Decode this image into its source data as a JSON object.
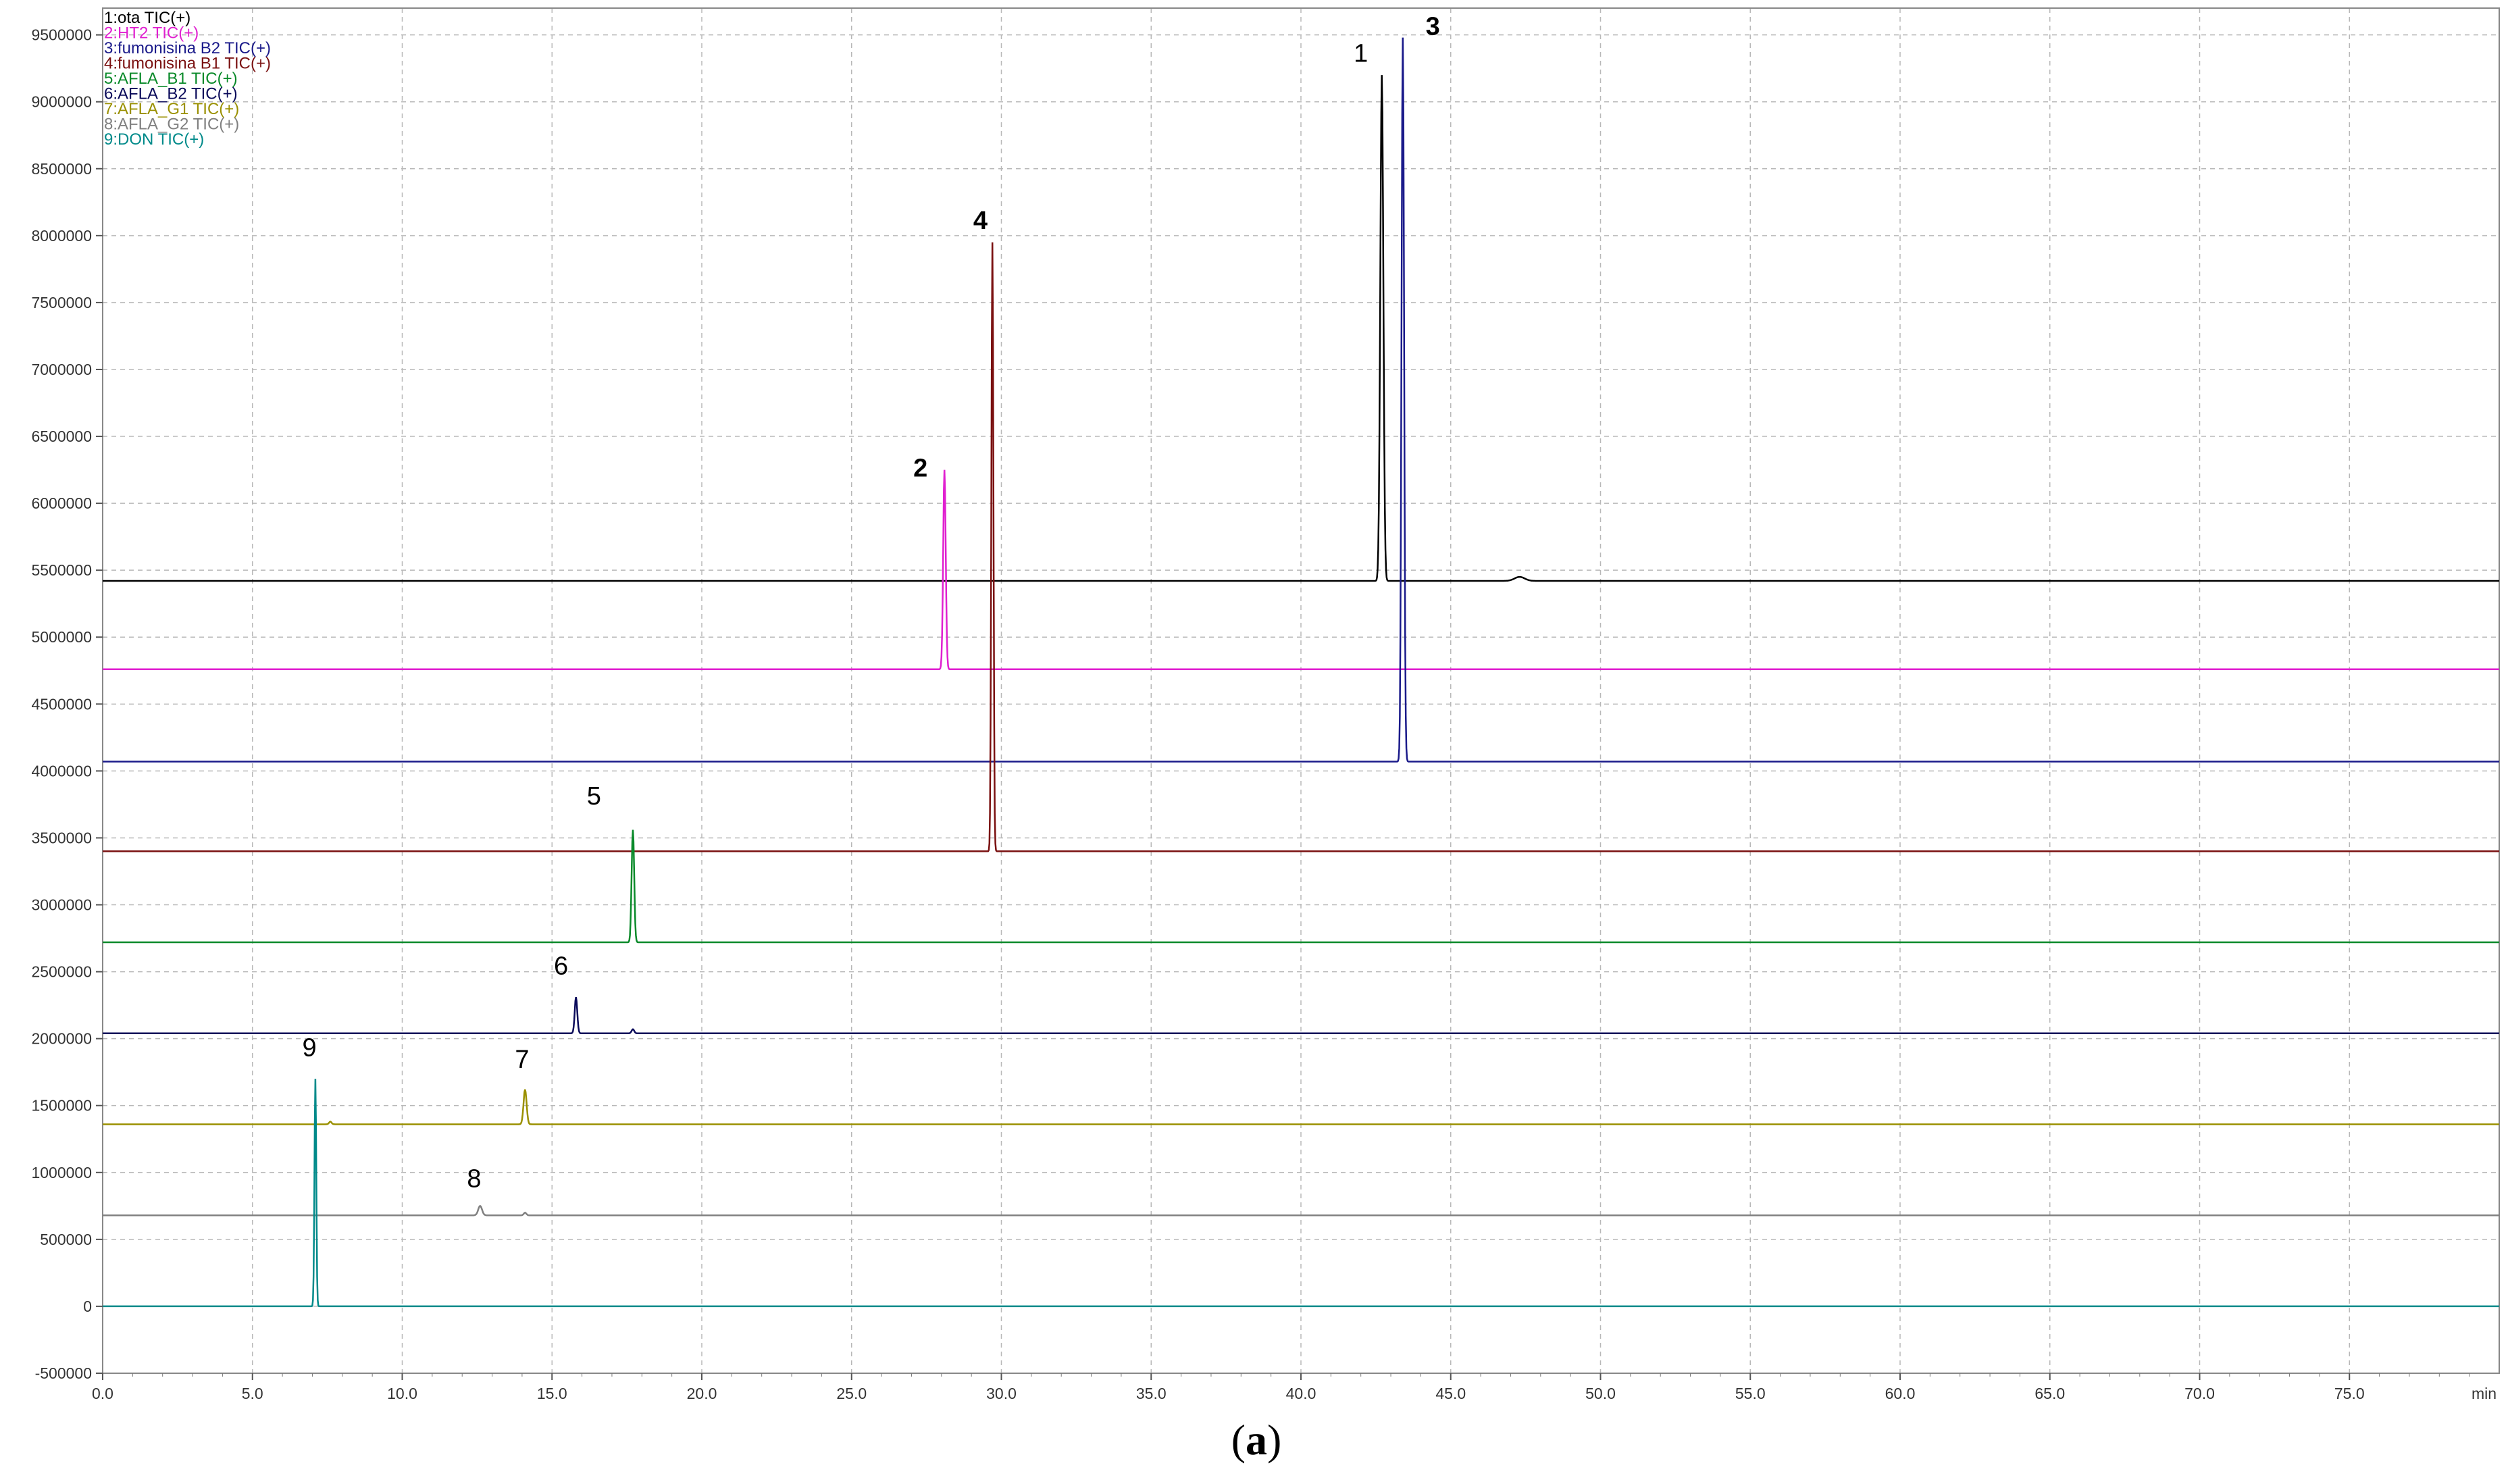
{
  "chart_data": {
    "type": "line",
    "title": "",
    "xlabel": "",
    "x_unit": "min",
    "ylabel": "",
    "xlim": [
      0,
      80
    ],
    "ylim": [
      -500000,
      9700000
    ],
    "x_ticks": [
      "0.0",
      "5.0",
      "10.0",
      "15.0",
      "20.0",
      "25.0",
      "30.0",
      "35.0",
      "40.0",
      "45.0",
      "50.0",
      "55.0",
      "60.0",
      "65.0",
      "70.0",
      "75.0"
    ],
    "x_tick_values": [
      0,
      5,
      10,
      15,
      20,
      25,
      30,
      35,
      40,
      45,
      50,
      55,
      60,
      65,
      70,
      75
    ],
    "y_ticks": [
      "-500000",
      "0",
      "500000",
      "1000000",
      "1500000",
      "2000000",
      "2500000",
      "3000000",
      "3500000",
      "4000000",
      "4500000",
      "5000000",
      "5500000",
      "6000000",
      "6500000",
      "7000000",
      "7500000",
      "8000000",
      "8500000",
      "9000000",
      "9500000"
    ],
    "y_tick_values": [
      -500000,
      0,
      500000,
      1000000,
      1500000,
      2000000,
      2500000,
      3000000,
      3500000,
      4000000,
      4500000,
      5000000,
      5500000,
      6000000,
      6500000,
      7000000,
      7500000,
      8000000,
      8500000,
      9000000,
      9500000
    ],
    "grid": true,
    "legend_position": "top-left",
    "series": [
      {
        "name": "1:ota TIC(+)",
        "color": "#000000",
        "baseline": 5420000,
        "peaks": [
          {
            "x": 42.7,
            "y": 9200000,
            "width": 0.12
          },
          {
            "x": 47.3,
            "y": 5450000,
            "width": 0.4
          }
        ]
      },
      {
        "name": "2:HT2 TIC(+)",
        "color": "#e020d0",
        "baseline": 4760000,
        "peaks": [
          {
            "x": 28.1,
            "y": 6250000,
            "width": 0.1
          }
        ]
      },
      {
        "name": "3:fumonisina B2 TIC(+)",
        "color": "#1a1a8a",
        "baseline": 4070000,
        "peaks": [
          {
            "x": 43.4,
            "y": 9480000,
            "width": 0.1
          }
        ]
      },
      {
        "name": "4:fumonisina B1 TIC(+)",
        "color": "#7a1010",
        "baseline": 3400000,
        "peaks": [
          {
            "x": 29.7,
            "y": 7950000,
            "width": 0.08
          }
        ]
      },
      {
        "name": "5:AFLA_B1 TIC(+)",
        "color": "#0a8a2a",
        "baseline": 2720000,
        "peaks": [
          {
            "x": 17.7,
            "y": 3560000,
            "width": 0.1
          }
        ]
      },
      {
        "name": "6:AFLA_B2 TIC(+)",
        "color": "#0a0a5a",
        "baseline": 2040000,
        "peaks": [
          {
            "x": 15.8,
            "y": 2310000,
            "width": 0.1
          },
          {
            "x": 17.7,
            "y": 2070000,
            "width": 0.1
          }
        ]
      },
      {
        "name": "7:AFLA_G1 TIC(+)",
        "color": "#9a9000",
        "baseline": 1360000,
        "peaks": [
          {
            "x": 14.1,
            "y": 1620000,
            "width": 0.12
          },
          {
            "x": 7.6,
            "y": 1380000,
            "width": 0.1
          }
        ]
      },
      {
        "name": "8:AFLA_G2 TIC(+)",
        "color": "#808080",
        "baseline": 680000,
        "peaks": [
          {
            "x": 12.6,
            "y": 750000,
            "width": 0.15
          },
          {
            "x": 14.1,
            "y": 700000,
            "width": 0.1
          }
        ]
      },
      {
        "name": "9:DON TIC(+)",
        "color": "#008a8a",
        "baseline": 0,
        "peaks": [
          {
            "x": 7.1,
            "y": 1700000,
            "width": 0.07
          }
        ]
      }
    ],
    "peak_labels": [
      {
        "label": "1",
        "x": 42.0,
        "y": 9300000,
        "bold": false
      },
      {
        "label": "3",
        "x": 44.4,
        "y": 9500000,
        "bold": true
      },
      {
        "label": "2",
        "x": 27.3,
        "y": 6200000,
        "bold": true
      },
      {
        "label": "4",
        "x": 29.3,
        "y": 8050000,
        "bold": true
      },
      {
        "label": "5",
        "x": 16.4,
        "y": 3750000,
        "bold": false
      },
      {
        "label": "6",
        "x": 15.3,
        "y": 2480000,
        "bold": false
      },
      {
        "label": "7",
        "x": 14.0,
        "y": 1780000,
        "bold": false
      },
      {
        "label": "9",
        "x": 6.9,
        "y": 1870000,
        "bold": false
      },
      {
        "label": "8",
        "x": 12.4,
        "y": 890000,
        "bold": false
      }
    ]
  },
  "caption": {
    "open": "(",
    "letter": "a",
    "close": ")"
  }
}
